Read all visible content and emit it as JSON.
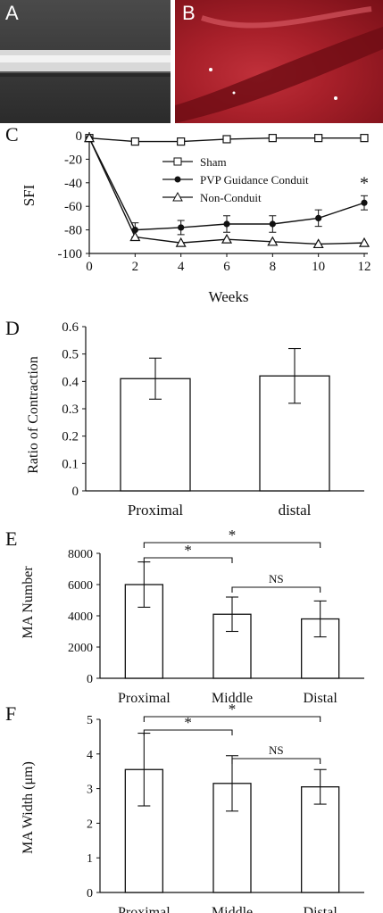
{
  "panels": {
    "A": "A",
    "B": "B",
    "C": "C",
    "D": "D",
    "E": "E",
    "F": "F"
  },
  "colors": {
    "axis": "#111111",
    "bar_fill": "#ffffff",
    "photo_bg_A": "#3a3a3a",
    "photo_bg_B": "#b0222c"
  },
  "chart_data": [
    {
      "type": "line",
      "panel": "C",
      "xlabel": "Weeks",
      "ylabel": "SFI",
      "xlim": [
        0,
        12
      ],
      "ylim": [
        -100,
        0
      ],
      "xticks": [
        "0",
        "2",
        "4",
        "6",
        "8",
        "10",
        "12"
      ],
      "yticks": [
        "0",
        "-20",
        "-40",
        "-60",
        "-80",
        "-100"
      ],
      "x": [
        0,
        2,
        4,
        6,
        8,
        10,
        12
      ],
      "series": [
        {
          "name": "Sham",
          "marker": "open-square",
          "values": [
            -2,
            -5,
            -5,
            -3,
            -2,
            -2,
            -2
          ]
        },
        {
          "name": "PVP Guidance Conduit",
          "marker": "filled-circle",
          "values": [
            -2,
            -80,
            -78,
            -75,
            -75,
            -70,
            -57
          ],
          "errors": [
            0,
            6,
            6,
            7,
            7,
            7,
            6
          ]
        },
        {
          "name": "Non-Conduit",
          "marker": "open-triangle",
          "values": [
            -2,
            -86,
            -91,
            -88,
            -90,
            -92,
            -91
          ]
        }
      ],
      "annotations": [
        {
          "x": 12,
          "text": "*"
        }
      ],
      "legend": "center-right"
    },
    {
      "type": "bar",
      "panel": "D",
      "ylabel": "Ratio of Contraction",
      "ylim": [
        0,
        0.6
      ],
      "yticks": [
        "0",
        "0.1",
        "0.2",
        "0.3",
        "0.4",
        "0.5",
        "0.6"
      ],
      "categories": [
        "Proximal",
        "distal"
      ],
      "values": [
        0.41,
        0.42
      ],
      "errors": [
        0.075,
        0.1
      ]
    },
    {
      "type": "bar",
      "panel": "E",
      "ylabel": "MA Number",
      "ylim": [
        0,
        8000
      ],
      "yticks": [
        "0",
        "2000",
        "4000",
        "6000",
        "8000"
      ],
      "categories": [
        "Proximal",
        "Middle",
        "Distal"
      ],
      "values": [
        6000,
        4100,
        3800
      ],
      "errors": [
        1450,
        1100,
        1150
      ],
      "significance": [
        {
          "from": 0,
          "to": 1,
          "label": "*"
        },
        {
          "from": 0,
          "to": 2,
          "label": "*"
        },
        {
          "from": 1,
          "to": 2,
          "label": "NS"
        }
      ]
    },
    {
      "type": "bar",
      "panel": "F",
      "ylabel": "MA Width (μm)",
      "ylim": [
        0,
        5
      ],
      "yticks": [
        "0",
        "1",
        "2",
        "3",
        "4",
        "5"
      ],
      "categories": [
        "Proximal",
        "Middle",
        "Distal"
      ],
      "values": [
        3.55,
        3.15,
        3.05
      ],
      "errors": [
        1.05,
        0.8,
        0.5
      ],
      "significance": [
        {
          "from": 0,
          "to": 1,
          "label": "*"
        },
        {
          "from": 0,
          "to": 2,
          "label": "*"
        },
        {
          "from": 1,
          "to": 2,
          "label": "NS"
        }
      ]
    }
  ]
}
